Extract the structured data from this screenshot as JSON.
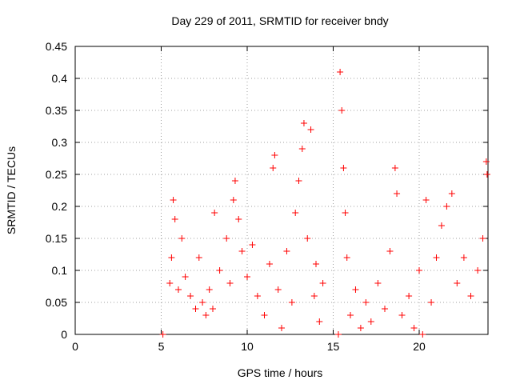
{
  "chart_data": {
    "type": "scatter",
    "title": "Day 229 of 2011, SRMTID for receiver bndy",
    "xlabel": "GPS time / hours",
    "ylabel": "SRMTID / TECUs",
    "xlim": [
      0,
      24
    ],
    "ylim": [
      0,
      0.45
    ],
    "x_ticks": [
      0,
      5,
      10,
      15,
      20
    ],
    "y_ticks": [
      0,
      0.05,
      0.1,
      0.15,
      0.2,
      0.25,
      0.3,
      0.35,
      0.4,
      0.45
    ],
    "x_tick_labels": [
      "0",
      "5",
      "10",
      "15",
      "20"
    ],
    "y_tick_labels": [
      "0",
      "0.05",
      "0.1",
      "0.15",
      "0.2",
      "0.25",
      "0.3",
      "0.35",
      "0.4",
      "0.45"
    ],
    "grid": true,
    "marker": "+",
    "color": "#ff0000",
    "series": [
      {
        "name": "SRMTID",
        "points": [
          [
            5.1,
            0.0
          ],
          [
            5.5,
            0.08
          ],
          [
            5.6,
            0.12
          ],
          [
            5.7,
            0.21
          ],
          [
            5.8,
            0.18
          ],
          [
            6.0,
            0.07
          ],
          [
            6.2,
            0.15
          ],
          [
            6.4,
            0.09
          ],
          [
            6.7,
            0.06
          ],
          [
            7.0,
            0.04
          ],
          [
            7.2,
            0.12
          ],
          [
            7.4,
            0.05
          ],
          [
            7.6,
            0.03
          ],
          [
            7.8,
            0.07
          ],
          [
            8.0,
            0.04
          ],
          [
            8.1,
            0.19
          ],
          [
            8.4,
            0.1
          ],
          [
            8.8,
            0.15
          ],
          [
            9.0,
            0.08
          ],
          [
            9.2,
            0.21
          ],
          [
            9.3,
            0.24
          ],
          [
            9.5,
            0.18
          ],
          [
            9.7,
            0.13
          ],
          [
            10.0,
            0.09
          ],
          [
            10.3,
            0.14
          ],
          [
            10.6,
            0.06
          ],
          [
            11.0,
            0.03
          ],
          [
            11.3,
            0.11
          ],
          [
            11.5,
            0.26
          ],
          [
            11.6,
            0.28
          ],
          [
            11.8,
            0.07
          ],
          [
            12.0,
            0.01
          ],
          [
            12.3,
            0.13
          ],
          [
            12.6,
            0.05
          ],
          [
            12.8,
            0.19
          ],
          [
            13.0,
            0.24
          ],
          [
            13.2,
            0.29
          ],
          [
            13.3,
            0.33
          ],
          [
            13.5,
            0.15
          ],
          [
            13.7,
            0.32
          ],
          [
            13.9,
            0.06
          ],
          [
            14.0,
            0.11
          ],
          [
            14.2,
            0.02
          ],
          [
            14.4,
            0.08
          ],
          [
            15.3,
            0.0
          ],
          [
            15.4,
            0.41
          ],
          [
            15.5,
            0.35
          ],
          [
            15.6,
            0.26
          ],
          [
            15.7,
            0.19
          ],
          [
            15.8,
            0.12
          ],
          [
            16.0,
            0.03
          ],
          [
            16.3,
            0.07
          ],
          [
            16.6,
            0.01
          ],
          [
            16.9,
            0.05
          ],
          [
            17.2,
            0.02
          ],
          [
            17.6,
            0.08
          ],
          [
            18.0,
            0.04
          ],
          [
            18.3,
            0.13
          ],
          [
            18.6,
            0.26
          ],
          [
            18.7,
            0.22
          ],
          [
            19.0,
            0.03
          ],
          [
            19.4,
            0.06
          ],
          [
            19.7,
            0.01
          ],
          [
            20.0,
            0.1
          ],
          [
            20.2,
            0.0
          ],
          [
            20.4,
            0.21
          ],
          [
            20.7,
            0.05
          ],
          [
            21.0,
            0.12
          ],
          [
            21.3,
            0.17
          ],
          [
            21.6,
            0.2
          ],
          [
            21.9,
            0.22
          ],
          [
            22.2,
            0.08
          ],
          [
            22.6,
            0.12
          ],
          [
            23.0,
            0.06
          ],
          [
            23.4,
            0.1
          ],
          [
            23.7,
            0.15
          ],
          [
            23.9,
            0.27
          ],
          [
            23.95,
            0.25
          ]
        ]
      }
    ]
  }
}
